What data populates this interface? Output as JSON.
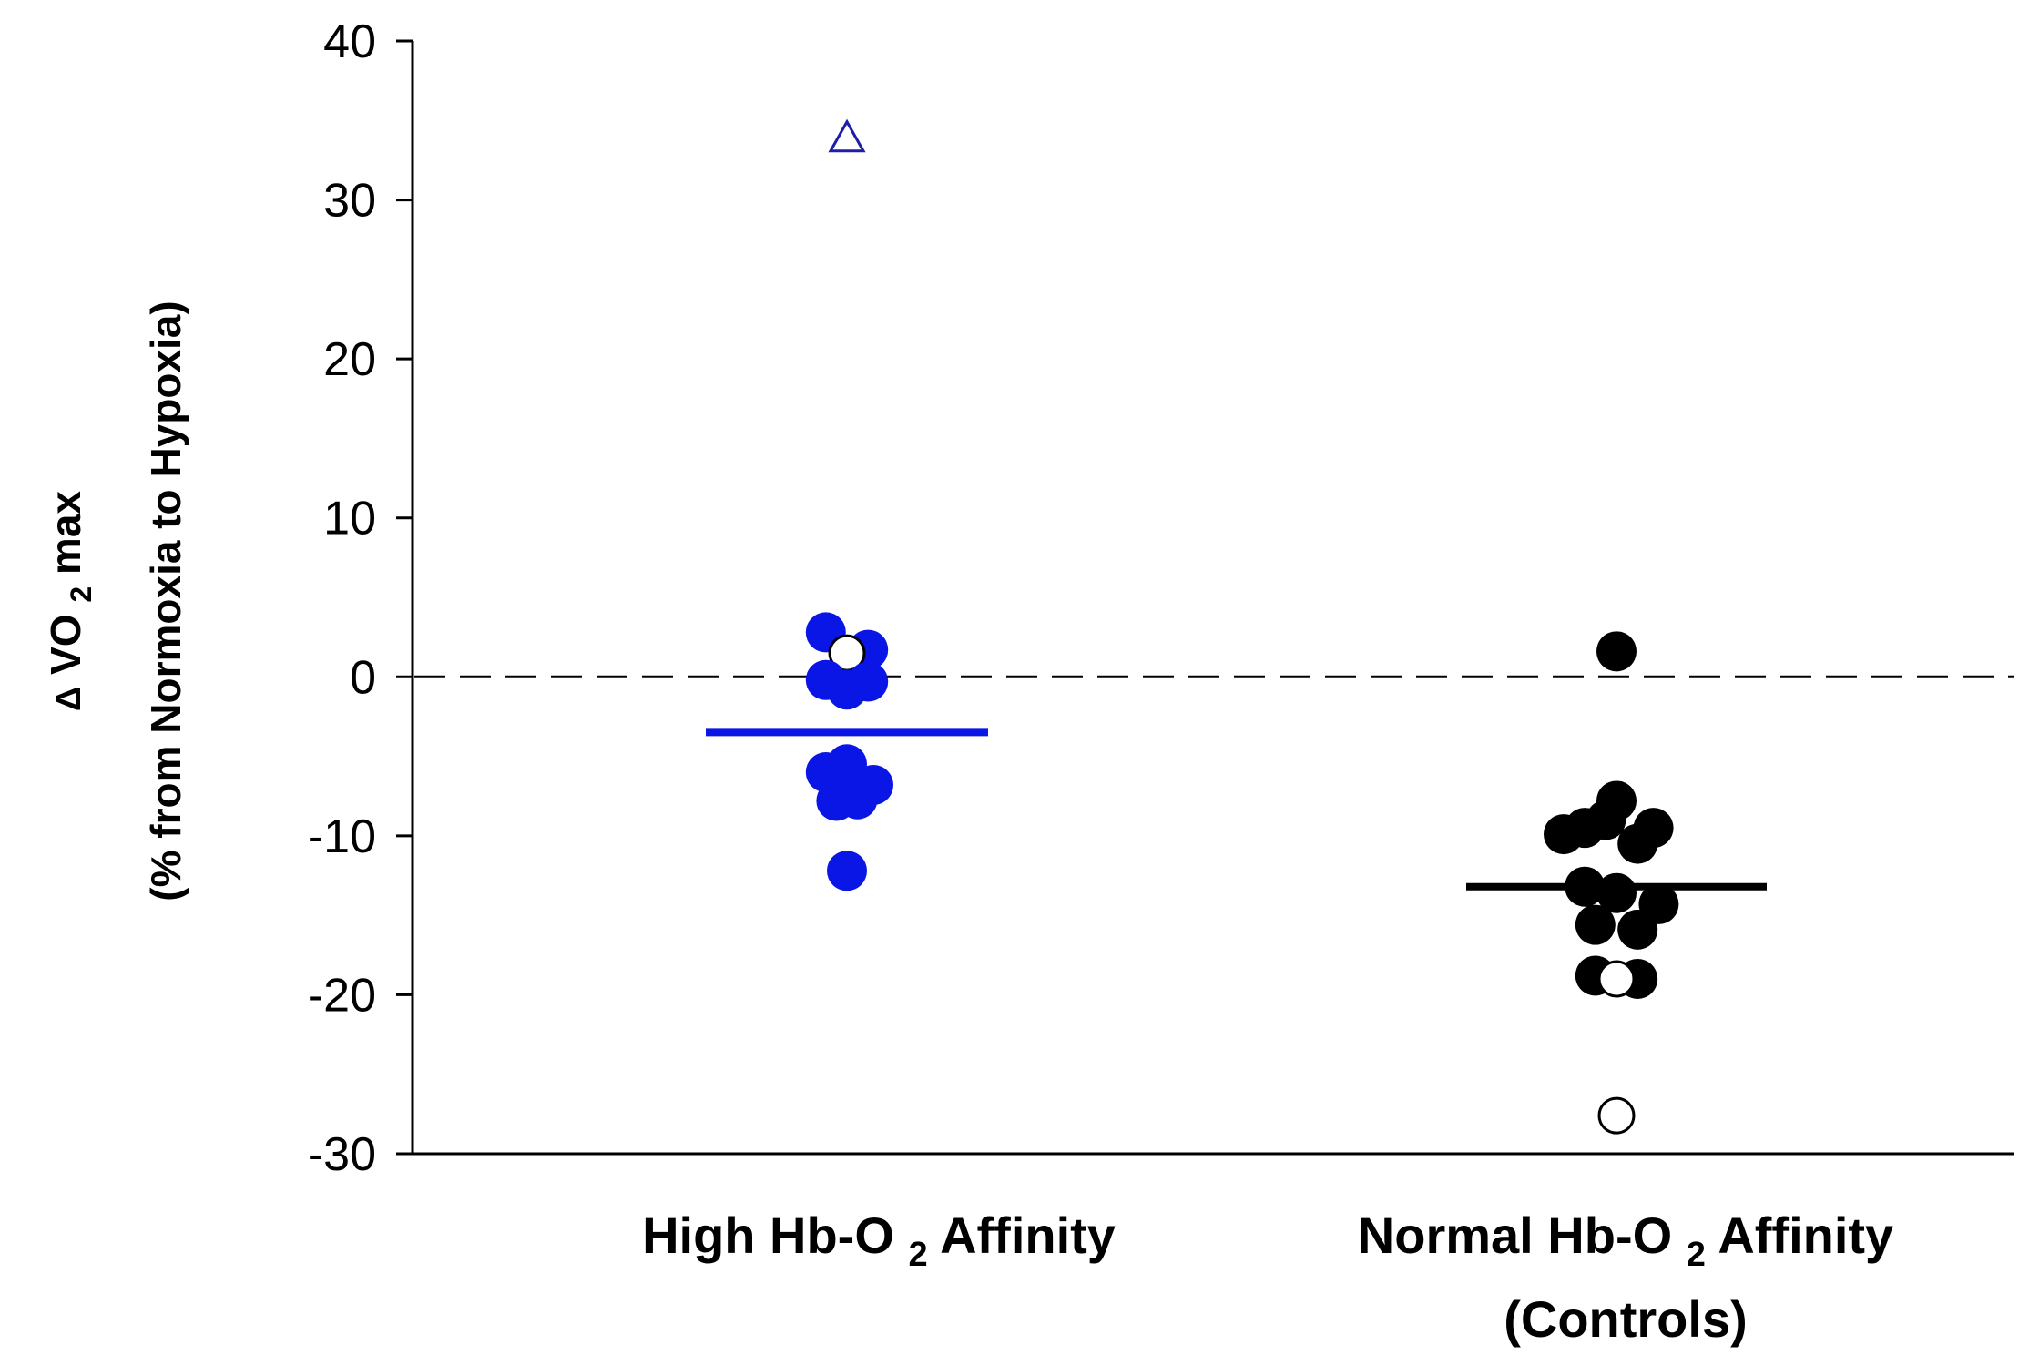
{
  "chart_data": {
    "type": "scatter",
    "title": "",
    "ylabel": {
      "prefix": "Δ",
      "main": "VO",
      "sub": "2",
      "suffix": "max",
      "line2": "(% from Normoxia to Hypoxia)"
    },
    "ylim": [
      -30,
      40
    ],
    "yticks": [
      40,
      30,
      20,
      10,
      0,
      -10,
      -20,
      -30
    ],
    "reference_line": {
      "y": 0,
      "style": "dashed"
    },
    "categories": [
      {
        "main": "High Hb-O",
        "sub": "2",
        "suffix": " Affinity",
        "line2": ""
      },
      {
        "main": "Normal Hb-O",
        "sub": "2",
        "suffix": " Affinity",
        "line2": "(Controls)"
      }
    ],
    "colors": {
      "high": "#0a16e6",
      "normal": "#000000",
      "triangle": "#1e1eaa"
    },
    "series": [
      {
        "name": "High Hb-O2 Affinity",
        "color": "#0a16e6",
        "mean": -3.5,
        "points": [
          {
            "x": -0.4,
            "y": 2.8,
            "filled": true
          },
          {
            "x": 0.4,
            "y": 1.7,
            "filled": true
          },
          {
            "x": 0.0,
            "y": 1.5,
            "filled": false
          },
          {
            "x": -0.4,
            "y": -0.2,
            "filled": true
          },
          {
            "x": 0.4,
            "y": -0.3,
            "filled": true
          },
          {
            "x": 0.0,
            "y": -0.8,
            "filled": true
          },
          {
            "x": 0.0,
            "y": -5.5,
            "filled": true
          },
          {
            "x": -0.4,
            "y": -6.0,
            "filled": true
          },
          {
            "x": 0.5,
            "y": -6.8,
            "filled": true
          },
          {
            "x": -0.2,
            "y": -7.8,
            "filled": true
          },
          {
            "x": 0.2,
            "y": -7.7,
            "filled": true
          },
          {
            "x": 0.0,
            "y": -12.2,
            "filled": true
          },
          {
            "x": 0.0,
            "y": 34.0,
            "filled": false,
            "shape": "triangle"
          }
        ]
      },
      {
        "name": "Normal Hb-O2 Affinity (Controls)",
        "color": "#000000",
        "mean": -13.2,
        "points": [
          {
            "x": 0.0,
            "y": 1.6,
            "filled": true
          },
          {
            "x": 0.0,
            "y": -7.8,
            "filled": true
          },
          {
            "x": -0.2,
            "y": -9.0,
            "filled": true
          },
          {
            "x": -0.6,
            "y": -9.5,
            "filled": true
          },
          {
            "x": 0.7,
            "y": -9.5,
            "filled": true
          },
          {
            "x": -1.0,
            "y": -9.9,
            "filled": true
          },
          {
            "x": 0.4,
            "y": -10.5,
            "filled": true
          },
          {
            "x": -0.6,
            "y": -13.2,
            "filled": true
          },
          {
            "x": 0.0,
            "y": -13.6,
            "filled": true
          },
          {
            "x": 0.8,
            "y": -14.3,
            "filled": true
          },
          {
            "x": -0.4,
            "y": -15.6,
            "filled": true
          },
          {
            "x": 0.4,
            "y": -15.9,
            "filled": true
          },
          {
            "x": -0.4,
            "y": -18.8,
            "filled": true
          },
          {
            "x": 0.4,
            "y": -19.0,
            "filled": true
          },
          {
            "x": 0.0,
            "y": -19.0,
            "filled": false
          },
          {
            "x": 0.0,
            "y": -27.6,
            "filled": false
          }
        ]
      }
    ]
  }
}
